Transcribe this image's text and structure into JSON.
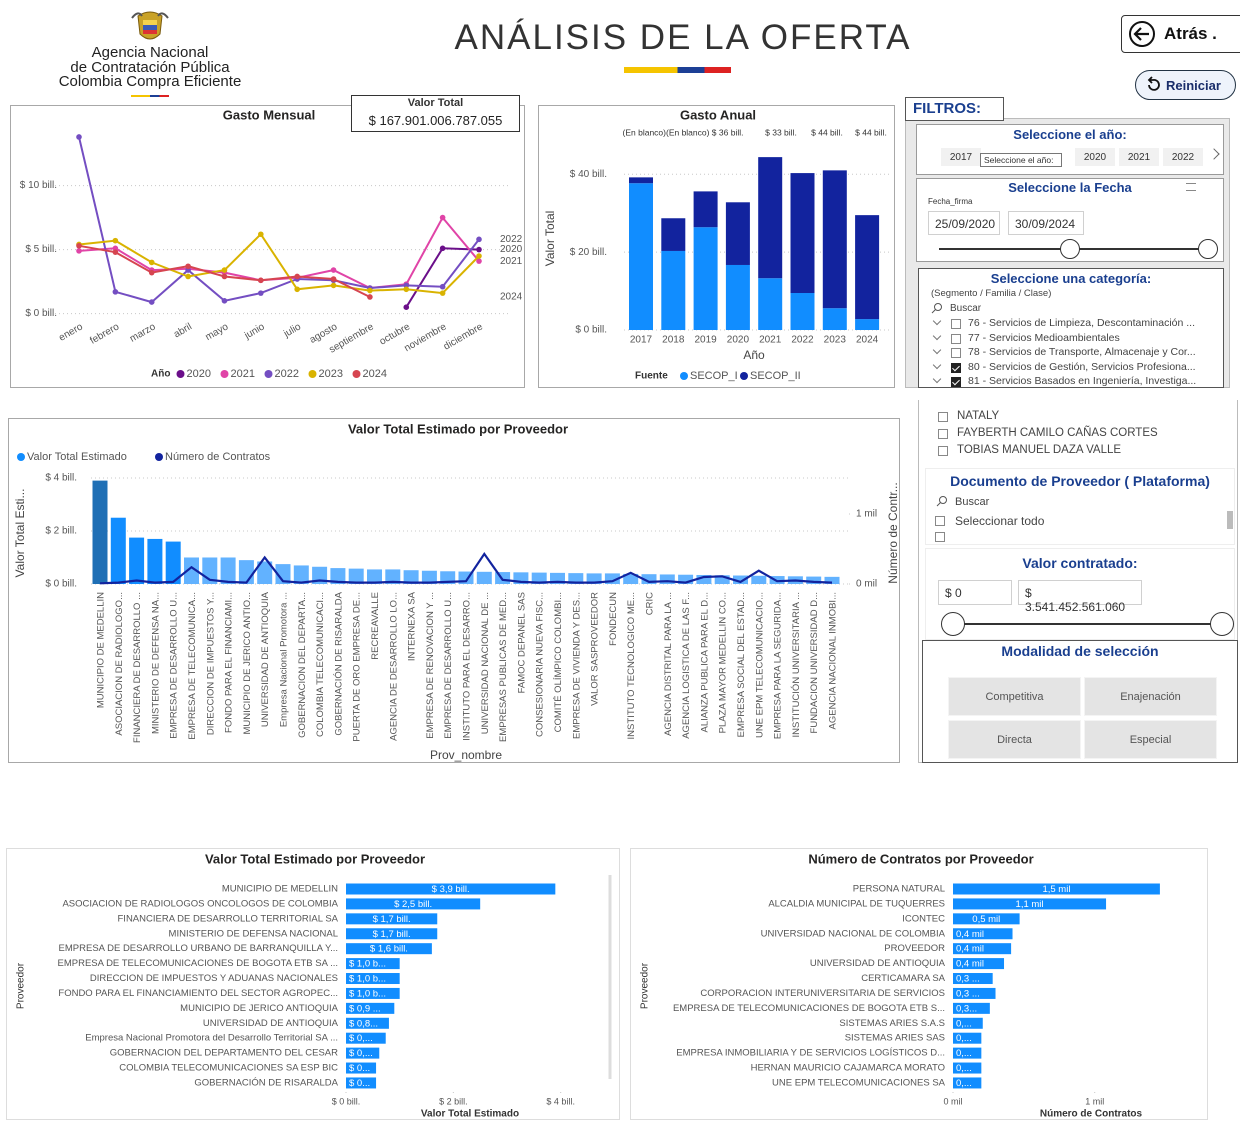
{
  "header": {
    "agency": [
      "Agencia Nacional",
      "de Contratación Pública",
      "Colombia Compra Eficiente"
    ],
    "title": "ANÁLISIS DE LA OFERTA",
    "back": "Atrás .",
    "reset": "Reiniciar"
  },
  "card": {
    "label": "Valor Total",
    "value": "$ 167.901.006.787.055"
  },
  "filters": {
    "title": "FILTROS:",
    "year": {
      "title": "Seleccione el año:",
      "options": [
        "2017",
        "2020",
        "2021",
        "2022"
      ],
      "tooltip": "Seleccione el año:"
    },
    "date": {
      "title": "Seleccione la Fecha",
      "field": "Fecha_firma",
      "from": "25/09/2020",
      "to": "30/09/2024"
    },
    "category": {
      "title": "Seleccione una categoría:",
      "subtitle": "(Segmento / Familia / Clase)",
      "search": "Buscar",
      "items": [
        {
          "label": "76 - Servicios de Limpieza, Descontaminación ...",
          "checked": false
        },
        {
          "label": "77 - Servicios Medioambientales",
          "checked": false
        },
        {
          "label": "78 - Servicios de Transporte, Almacenaje y Cor...",
          "checked": false
        },
        {
          "label": "80 - Servicios de Gestión, Servicios Profesiona...",
          "checked": true
        },
        {
          "label": "81 - Servicios Basados en Ingeniería, Investiga...",
          "checked": true
        }
      ]
    },
    "providers": [
      "NATALY",
      "FAYBERTH CAMILO CAÑAS CORTES",
      "TOBIAS MANUEL DAZA VALLE"
    ],
    "document": {
      "title": "Documento de Proveedor ( Plataforma)",
      "search": "Buscar",
      "select_all": "Seleccionar todo"
    },
    "value": {
      "title": "Valor contratado:",
      "from": "$ 0",
      "to": "$ 3.541.452.561.060"
    },
    "modality": {
      "title": "Modalidad de selección",
      "options": [
        "Competitiva",
        "Enajenación",
        "Directa",
        "Especial"
      ]
    }
  },
  "chart_data": [
    {
      "type": "line",
      "title": "Gasto Mensual",
      "categories": [
        "enero",
        "febrero",
        "marzo",
        "abril",
        "mayo",
        "junio",
        "julio",
        "agosto",
        "septiembre",
        "octubre",
        "noviembre",
        "diciembre"
      ],
      "series": [
        {
          "name": "2020",
          "color": "#6b0f8a",
          "values": [
            null,
            null,
            null,
            null,
            null,
            null,
            null,
            null,
            null,
            0.5,
            5.1,
            5.0
          ]
        },
        {
          "name": "2021",
          "color": "#e044a7",
          "values": [
            4.9,
            5.1,
            3.4,
            3.5,
            3.2,
            2.6,
            2.8,
            3.4,
            2.0,
            2.3,
            7.5,
            4.1
          ]
        },
        {
          "name": "2022",
          "color": "#744ec2",
          "values": [
            13.8,
            1.7,
            0.9,
            3.4,
            1.0,
            1.6,
            2.7,
            2.6,
            2.0,
            2.2,
            2.1,
            5.8
          ]
        },
        {
          "name": "2023",
          "color": "#d9b300",
          "values": [
            5.4,
            5.7,
            4.0,
            2.9,
            3.4,
            6.2,
            1.9,
            2.2,
            1.8,
            1.9,
            1.6,
            4.5
          ]
        },
        {
          "name": "2024",
          "color": "#d64550",
          "values": [
            5.3,
            4.8,
            3.2,
            3.7,
            2.9,
            2.6,
            2.9,
            2.7,
            1.3,
            null,
            null,
            null
          ]
        }
      ],
      "end_labels": [
        "2022",
        "2020",
        "2021",
        "2024"
      ],
      "legend_title": "Año",
      "ylim": [
        -0.5,
        14.5
      ],
      "yticks": [
        {
          "value": 0,
          "label": "$ 0 bill."
        },
        {
          "value": 5,
          "label": "$ 5 bill."
        },
        {
          "value": 10,
          "label": "$ 10 bill."
        }
      ],
      "grid": true
    },
    {
      "type": "stacked_bar",
      "title": "Gasto Anual",
      "annotations": [
        "(En blanco)(En blanco) $ 36 bill.",
        "$ 33 bill.",
        "$ 44 bill.",
        "$ 44 bill."
      ],
      "categories": [
        "2017",
        "2018",
        "2019",
        "2020",
        "2021",
        "2022",
        "2023",
        "2024"
      ],
      "series": [
        {
          "name": "SECOP_I",
          "color": "#118dff",
          "values": [
            37.7,
            20.3,
            26.4,
            16.7,
            13.3,
            9.5,
            5.6,
            2.8
          ]
        },
        {
          "name": "SECOP_II",
          "color": "#12239e",
          "values": [
            1.5,
            8.4,
            9.2,
            16.1,
            31.1,
            30.8,
            35.4,
            26.7
          ]
        }
      ],
      "legend_title": "Fuente",
      "x_label": "Año",
      "y_label": "Valor Total",
      "ylim": [
        0,
        47
      ],
      "yticks": [
        {
          "value": 0,
          "label": "$ 0 bill."
        },
        {
          "value": 20,
          "label": "$ 20 bill."
        },
        {
          "value": 40,
          "label": "$ 40 bill."
        }
      ],
      "grid": true
    },
    {
      "type": "combo",
      "title": "Valor Total Estimado por Proveedor",
      "categories": [
        "MUNICIPIO DE MEDELLIN",
        "ASOCIACION DE RADIOLOGO...",
        "FINANCIERA DE DESARROLLO ...",
        "MINISTERIO DE DEFENSA NA...",
        "EMPRESA DE DESARROLLO U...",
        "EMPRESA DE TELECOMUNICA...",
        "DIRECCION DE IMPUESTOS Y...",
        "FONDO PARA EL FINANCIAMI...",
        "MUNICIPIO DE JERICO ANTIO...",
        "UNIVERSIDAD DE ANTIOQUIA",
        "Empresa Nacional Promotora ...",
        "GOBERNACION DEL DEPARTA...",
        "COLOMBIA TELECOMUNICACI...",
        "GOBERNACIÓN DE RISARALDA",
        "PUERTA DE ORO EMPRESA DE...",
        "RECREAVALLE",
        "AGENCIA DE DESARROLLO LO...",
        "INTERNEXA SA",
        "EMPRESA DE RENOVACION Y ...",
        "EMPRESA DE DESARROLLO U...",
        "INSTITUTO PARA EL DESARRO...",
        "UNIVERSIDAD NACIONAL DE ...",
        "EMPRESAS PUBLICAS DE MED...",
        "FAMOC DEPANEL SAS",
        "CONSESIONARIA NUEVA FISC...",
        "COMITÉ OLÍMPICO COLOMBI...",
        "EMPRESA DE VIVIENDA Y DES...",
        "VALOR SASPROVEEDOR",
        "FONDECUN",
        "INSTITUTO TECNOLOGICO ME...",
        "CRIC",
        "AGENCIA DISTRITAL PARA LA ...",
        "AGENCIA LOGISTICA DE LAS F...",
        "ALIANZA PUBLICA PARA EL D...",
        "PLAZA MAYOR MEDELLIN CO...",
        "EMPRESA SOCIAL DEL ESTAD...",
        "UNE EPM TELECOMUNICACIO...",
        "EMPRESA PARA LA SEGURIDA...",
        "INSTITUCIÓN UNIVERSITARIA ...",
        "FUNDACION UNIVERSIDAD D...",
        "AGENCIA NACIONAL INMOBI..."
      ],
      "series": [
        {
          "name": "Valor Total Estimado",
          "color": "#118dff",
          "colors": [
            "#1f6fb5",
            "#118dff",
            "#118dff",
            "#118dff",
            "#118dff",
            "#62b2ff",
            "#62b2ff",
            "#62b2ff",
            "#62b2ff",
            "#62b2ff",
            "#62b2ff",
            "#62b2ff",
            "#62b2ff",
            "#62b2ff",
            "#62b2ff",
            "#62b2ff",
            "#62b2ff",
            "#62b2ff",
            "#62b2ff",
            "#62b2ff",
            "#62b2ff",
            "#62b2ff",
            "#62b2ff",
            "#62b2ff",
            "#62b2ff",
            "#62b2ff",
            "#62b2ff",
            "#62b2ff",
            "#62b2ff",
            "#62b2ff",
            "#62b2ff",
            "#62b2ff",
            "#62b2ff",
            "#62b2ff",
            "#62b2ff",
            "#62b2ff",
            "#62b2ff",
            "#62b2ff",
            "#62b2ff",
            "#62b2ff",
            "#62b2ff"
          ],
          "values": [
            3.9,
            2.5,
            1.75,
            1.7,
            1.6,
            1.0,
            1.0,
            1.0,
            0.9,
            0.85,
            0.75,
            0.7,
            0.65,
            0.6,
            0.58,
            0.55,
            0.55,
            0.52,
            0.5,
            0.48,
            0.47,
            0.46,
            0.45,
            0.44,
            0.43,
            0.42,
            0.41,
            0.4,
            0.4,
            0.38,
            0.37,
            0.36,
            0.35,
            0.34,
            0.33,
            0.32,
            0.31,
            0.3,
            0.29,
            0.28,
            0.27
          ]
        },
        {
          "name": "Número de Contratos",
          "color": "#12239e",
          "axis": "y2",
          "values": [
            10,
            20,
            50,
            20,
            30,
            240,
            60,
            30,
            20,
            380,
            40,
            20,
            50,
            30,
            20,
            20,
            30,
            20,
            20,
            30,
            40,
            430,
            60,
            30,
            20,
            30,
            20,
            20,
            40,
            160,
            30,
            40,
            20,
            100,
            110,
            30,
            190,
            40,
            50,
            30,
            20
          ]
        }
      ],
      "x_label": "Prov_nombre",
      "y_label": "Valor Total Esti...",
      "y2_label": "Número de Contr...",
      "ylim": [
        0,
        4.3
      ],
      "yticks": [
        {
          "value": 0,
          "label": "$ 0 bill."
        },
        {
          "value": 2,
          "label": "$ 2 bill."
        },
        {
          "value": 4,
          "label": "$ 4 bill."
        }
      ],
      "y2lim": [
        0,
        1630
      ],
      "y2ticks": [
        {
          "value": 0,
          "label": "0 mil"
        },
        {
          "value": 1000,
          "label": "1 mil"
        }
      ],
      "grid": true
    },
    {
      "type": "hbar",
      "title": "Valor Total Estimado por Proveedor",
      "categories": [
        "MUNICIPIO DE MEDELLIN",
        "ASOCIACION DE RADIOLOGOS ONCOLOGOS DE COLOMBIA",
        "FINANCIERA DE DESARROLLO TERRITORIAL SA",
        "MINISTERIO DE DEFENSA NACIONAL",
        "EMPRESA DE DESARROLLO URBANO DE BARRANQUILLA Y...",
        "EMPRESA DE TELECOMUNICACIONES DE BOGOTA ETB SA ...",
        "DIRECCION DE IMPUESTOS Y ADUANAS NACIONALES",
        "FONDO PARA EL FINANCIAMIENTO DEL SECTOR AGROPEC...",
        "MUNICIPIO DE JERICO ANTIOQUIA",
        "UNIVERSIDAD DE ANTIOQUIA",
        "Empresa Nacional Promotora del Desarrollo Territorial SA ...",
        "GOBERNACION DEL DEPARTAMENTO DEL CESAR",
        "COLOMBIA TELECOMUNICACIONES SA ESP BIC",
        "GOBERNACIÓN DE RISARALDA"
      ],
      "values": [
        3.9,
        2.5,
        1.7,
        1.7,
        1.6,
        1.0,
        1.0,
        1.0,
        0.9,
        0.8,
        0.74,
        0.62,
        0.56,
        0.56
      ],
      "value_labels": [
        "$ 3,9 bill.",
        "$ 2,5 bill.",
        "$ 1,7 bill.",
        "$ 1,7 bill.",
        "$ 1,6 bill.",
        "$ 1,0 b...",
        "$ 1,0 b...",
        "$ 1,0 b...",
        "$ 0,9 ...",
        "$ 0,8...",
        "$ 0,...",
        "$ 0,...",
        "$ 0...",
        "$ 0..."
      ],
      "color": "#118dff",
      "x_label": "Valor Total Estimado",
      "y_label": "Proveedor",
      "xlim": [
        0,
        4.9
      ],
      "xticks": [
        {
          "value": 0,
          "label": "$ 0 bill."
        },
        {
          "value": 2,
          "label": "$ 2 bill."
        },
        {
          "value": 4,
          "label": "$ 4 bill."
        }
      ]
    },
    {
      "type": "hbar",
      "title": "Número de Contratos por Proveedor",
      "categories": [
        "PERSONA NATURAL",
        "ALCALDIA MUNICIPAL DE TUQUERRES",
        "ICONTEC",
        "UNIVERSIDAD NACIONAL DE COLOMBIA",
        "PROVEEDOR",
        "UNIVERSIDAD DE ANTIOQUIA",
        "CERTICAMARA SA",
        "CORPORACION INTERUNIVERSITARIA DE SERVICIOS",
        "EMPRESA DE TELECOMUNICACIONES DE BOGOTA ETB S...",
        "SISTEMAS ARIES S.A.S",
        "SISTEMAS ARIES SAS",
        "EMPRESA INMOBILIARIA Y DE SERVICIOS LOGÍSTICOS D...",
        "HERNAN MAURICIO CAJAMARCA MORATO",
        "UNE EPM TELECOMUNICACIONES SA"
      ],
      "values": [
        1460,
        1080,
        470,
        420,
        410,
        360,
        280,
        300,
        260,
        210,
        200,
        200,
        200,
        200
      ],
      "value_labels": [
        "1,5 mil",
        "1,1 mil",
        "0,5 mil",
        "0,4 mil",
        "0,4 mil",
        "0,4 mil",
        "0,3 ...",
        "0,3 ...",
        "0,3...",
        "0,...",
        "0,...",
        "0,...",
        "0,...",
        "0,..."
      ],
      "color": "#118dff",
      "x_label": "Número de Contratos",
      "y_label": "Proveedor",
      "xlim": [
        0,
        1750
      ],
      "xticks": [
        {
          "value": 0,
          "label": "0 mil"
        },
        {
          "value": 1000,
          "label": "1 mil"
        }
      ]
    }
  ]
}
